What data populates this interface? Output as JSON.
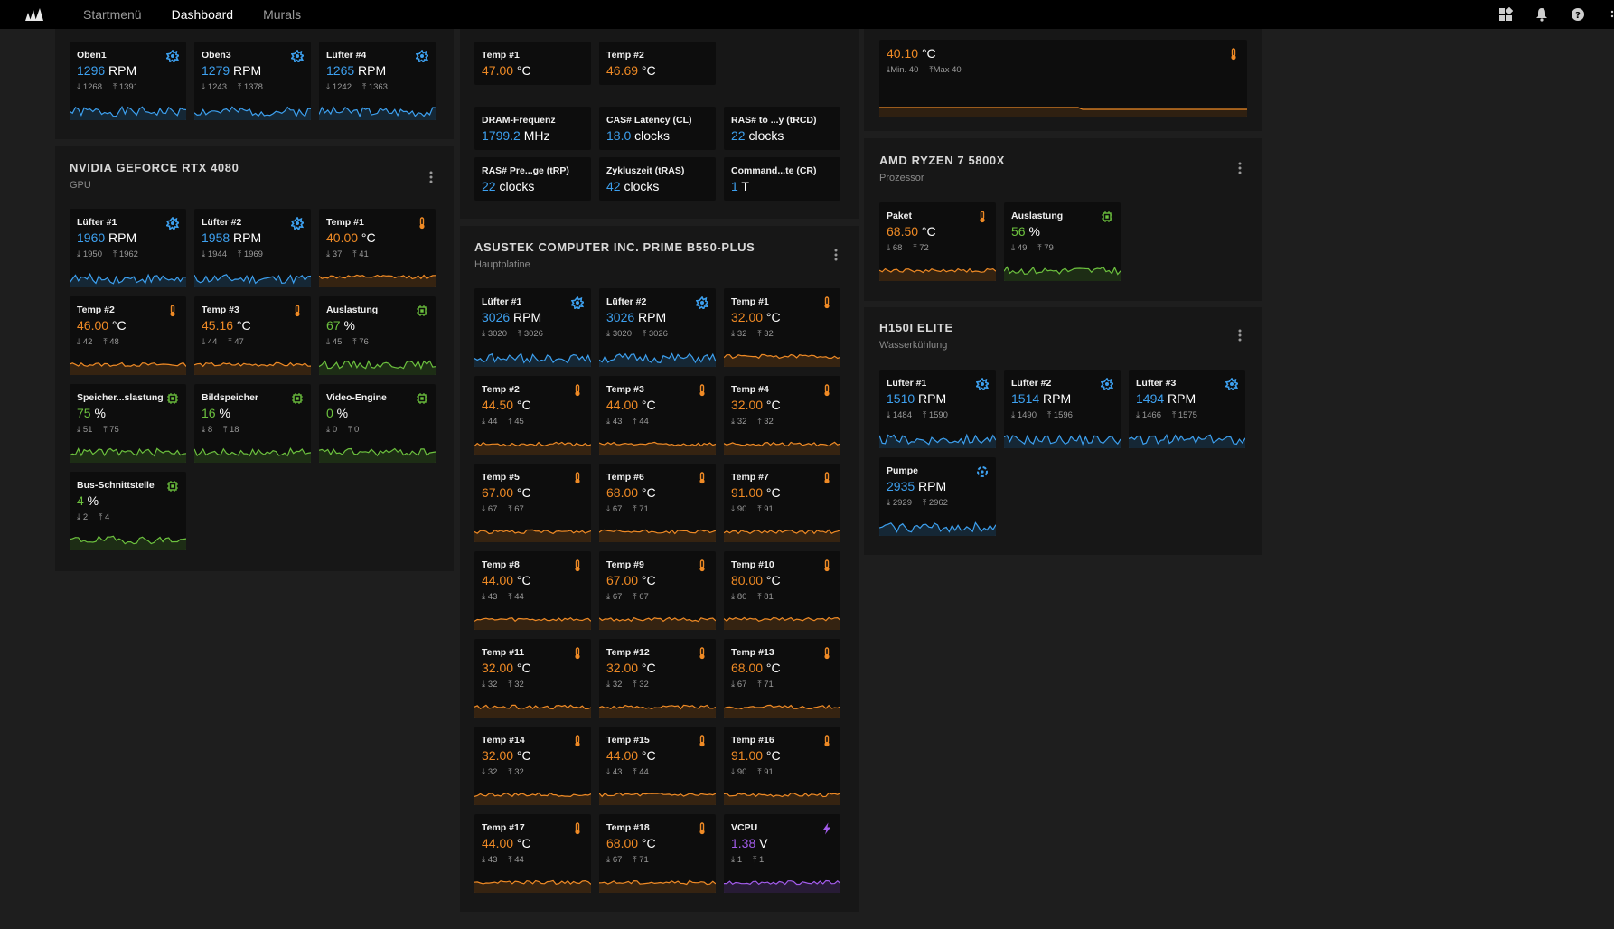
{
  "nav": {
    "items": [
      "Startmenü",
      "Dashboard",
      "Murals"
    ],
    "active": "Dashboard"
  },
  "colors": {
    "fan": "#3da0ef",
    "temp": "#ef8a25",
    "load": "#6cc13e",
    "volt": "#a35cec"
  },
  "col1": {
    "top_cards": [
      {
        "name": "Oben1",
        "value": "1296",
        "unit": "RPM",
        "min": "1268",
        "max": "1391",
        "kind": "fan"
      },
      {
        "name": "Oben3",
        "value": "1279",
        "unit": "RPM",
        "min": "1243",
        "max": "1378",
        "kind": "fan"
      },
      {
        "name": "Lüfter #4",
        "value": "1265",
        "unit": "RPM",
        "min": "1242",
        "max": "1363",
        "kind": "fan"
      }
    ],
    "gpu": {
      "title": "NVIDIA GEFORCE RTX 4080",
      "subtitle": "GPU",
      "cards": [
        {
          "name": "Lüfter #1",
          "value": "1960",
          "unit": "RPM",
          "min": "1950",
          "max": "1962",
          "kind": "fan"
        },
        {
          "name": "Lüfter #2",
          "value": "1958",
          "unit": "RPM",
          "min": "1944",
          "max": "1969",
          "kind": "fan"
        },
        {
          "name": "Temp #1",
          "value": "40.00",
          "unit": "°C",
          "min": "37",
          "max": "41",
          "kind": "temp"
        },
        {
          "name": "Temp #2",
          "value": "46.00",
          "unit": "°C",
          "min": "42",
          "max": "48",
          "kind": "temp"
        },
        {
          "name": "Temp #3",
          "value": "45.16",
          "unit": "°C",
          "min": "44",
          "max": "47",
          "kind": "temp"
        },
        {
          "name": "Auslastung",
          "value": "67",
          "unit": "%",
          "min": "45",
          "max": "76",
          "kind": "load"
        },
        {
          "name": "Speicher...slastung",
          "value": "75",
          "unit": "%",
          "min": "51",
          "max": "75",
          "kind": "load"
        },
        {
          "name": "Bildspeicher",
          "value": "16",
          "unit": "%",
          "min": "8",
          "max": "18",
          "kind": "load"
        },
        {
          "name": "Video-Engine",
          "value": "0",
          "unit": "%",
          "min": "0",
          "max": "0",
          "kind": "load"
        },
        {
          "name": "Bus-Schnittstelle",
          "value": "4",
          "unit": "%",
          "min": "2",
          "max": "4",
          "kind": "load"
        }
      ]
    }
  },
  "col2": {
    "top_temps": [
      {
        "name": "Temp #1",
        "value": "47.00",
        "unit": "°C",
        "kind": "temp"
      },
      {
        "name": "Temp #2",
        "value": "46.69",
        "unit": "°C",
        "kind": "temp"
      }
    ],
    "memory": [
      {
        "name": "DRAM-Frequenz",
        "value": "1799.2",
        "unit": "MHz",
        "kind": "mem"
      },
      {
        "name": "CAS# Latency (CL)",
        "value": "18.0",
        "unit": "clocks",
        "kind": "mem"
      },
      {
        "name": "RAS# to ...y (tRCD)",
        "value": "22",
        "unit": "clocks",
        "kind": "mem"
      },
      {
        "name": "RAS# Pre...ge (tRP)",
        "value": "22",
        "unit": "clocks",
        "kind": "mem"
      },
      {
        "name": "Zykluszeit (tRAS)",
        "value": "42",
        "unit": "clocks",
        "kind": "mem"
      },
      {
        "name": "Command...te (CR)",
        "value": "1",
        "unit": "T",
        "kind": "mem"
      }
    ],
    "board": {
      "title": "ASUSTEK COMPUTER INC. PRIME B550-PLUS",
      "subtitle": "Hauptplatine",
      "cards": [
        {
          "name": "Lüfter #1",
          "value": "3026",
          "unit": "RPM",
          "min": "3020",
          "max": "3026",
          "kind": "fan"
        },
        {
          "name": "Lüfter #2",
          "value": "3026",
          "unit": "RPM",
          "min": "3020",
          "max": "3026",
          "kind": "fan"
        },
        {
          "name": "Temp #1",
          "value": "32.00",
          "unit": "°C",
          "min": "32",
          "max": "32",
          "kind": "temp"
        },
        {
          "name": "Temp #2",
          "value": "44.50",
          "unit": "°C",
          "min": "44",
          "max": "45",
          "kind": "temp"
        },
        {
          "name": "Temp #3",
          "value": "44.00",
          "unit": "°C",
          "min": "43",
          "max": "44",
          "kind": "temp"
        },
        {
          "name": "Temp #4",
          "value": "32.00",
          "unit": "°C",
          "min": "32",
          "max": "32",
          "kind": "temp"
        },
        {
          "name": "Temp #5",
          "value": "67.00",
          "unit": "°C",
          "min": "67",
          "max": "67",
          "kind": "temp"
        },
        {
          "name": "Temp #6",
          "value": "68.00",
          "unit": "°C",
          "min": "67",
          "max": "71",
          "kind": "temp"
        },
        {
          "name": "Temp #7",
          "value": "91.00",
          "unit": "°C",
          "min": "90",
          "max": "91",
          "kind": "temp"
        },
        {
          "name": "Temp #8",
          "value": "44.00",
          "unit": "°C",
          "min": "43",
          "max": "44",
          "kind": "temp"
        },
        {
          "name": "Temp #9",
          "value": "67.00",
          "unit": "°C",
          "min": "67",
          "max": "67",
          "kind": "temp"
        },
        {
          "name": "Temp #10",
          "value": "80.00",
          "unit": "°C",
          "min": "80",
          "max": "81",
          "kind": "temp"
        },
        {
          "name": "Temp #11",
          "value": "32.00",
          "unit": "°C",
          "min": "32",
          "max": "32",
          "kind": "temp"
        },
        {
          "name": "Temp #12",
          "value": "32.00",
          "unit": "°C",
          "min": "32",
          "max": "32",
          "kind": "temp"
        },
        {
          "name": "Temp #13",
          "value": "68.00",
          "unit": "°C",
          "min": "67",
          "max": "71",
          "kind": "temp"
        },
        {
          "name": "Temp #14",
          "value": "32.00",
          "unit": "°C",
          "min": "32",
          "max": "32",
          "kind": "temp"
        },
        {
          "name": "Temp #15",
          "value": "44.00",
          "unit": "°C",
          "min": "43",
          "max": "44",
          "kind": "temp"
        },
        {
          "name": "Temp #16",
          "value": "91.00",
          "unit": "°C",
          "min": "90",
          "max": "91",
          "kind": "temp"
        },
        {
          "name": "Temp #17",
          "value": "44.00",
          "unit": "°C",
          "min": "43",
          "max": "44",
          "kind": "temp"
        },
        {
          "name": "Temp #18",
          "value": "68.00",
          "unit": "°C",
          "min": "67",
          "max": "71",
          "kind": "temp"
        },
        {
          "name": "VCPU",
          "value": "1.38",
          "unit": "V",
          "min": "1",
          "max": "1",
          "kind": "volt"
        }
      ]
    }
  },
  "col3": {
    "top_wide": {
      "value": "40.10",
      "unit": "°C",
      "min_label": "Min. 40",
      "max_label": "Max 40",
      "kind": "temp"
    },
    "cpu": {
      "title": "AMD RYZEN 7 5800X",
      "subtitle": "Prozessor",
      "cards": [
        {
          "name": "Paket",
          "value": "68.50",
          "unit": "°C",
          "min": "68",
          "max": "72",
          "kind": "temp"
        },
        {
          "name": "Auslastung",
          "value": "56",
          "unit": "%",
          "min": "49",
          "max": "79",
          "kind": "load"
        }
      ]
    },
    "cooler": {
      "title": "H150I ELITE",
      "subtitle": "Wasserkühlung",
      "cards": [
        {
          "name": "Lüfter #1",
          "value": "1510",
          "unit": "RPM",
          "min": "1484",
          "max": "1590",
          "kind": "fan"
        },
        {
          "name": "Lüfter #2",
          "value": "1514",
          "unit": "RPM",
          "min": "1490",
          "max": "1596",
          "kind": "fan"
        },
        {
          "name": "Lüfter #3",
          "value": "1494",
          "unit": "RPM",
          "min": "1466",
          "max": "1575",
          "kind": "fan"
        },
        {
          "name": "Pumpe",
          "value": "2935",
          "unit": "RPM",
          "min": "2929",
          "max": "2962",
          "kind": "pump"
        }
      ]
    }
  }
}
